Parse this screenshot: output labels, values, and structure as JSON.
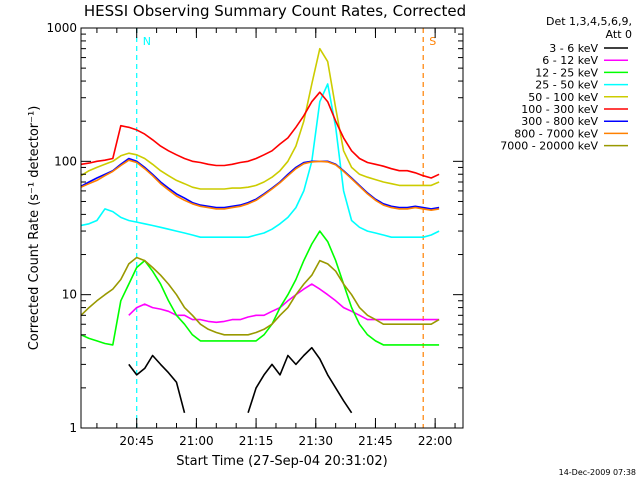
{
  "chart_data": {
    "type": "line",
    "title": "HESSI Observing Summary Count Rates, Corrected",
    "xlabel": "Start Time (27-Sep-04 20:31:02)",
    "ylabel": "Corrected Count Rate (s⁻¹ detector⁻¹)",
    "x_unit": "minutes since 20:31:02",
    "xlim": [
      0,
      96
    ],
    "ylim": [
      1,
      1000
    ],
    "y_scale": "log",
    "x_ticks": [
      {
        "x": 14,
        "label": "20:45"
      },
      {
        "x": 29,
        "label": "21:00"
      },
      {
        "x": 44,
        "label": "21:15"
      },
      {
        "x": 59,
        "label": "21:30"
      },
      {
        "x": 74,
        "label": "21:45"
      },
      {
        "x": 89,
        "label": "22:00"
      }
    ],
    "y_ticks": [
      {
        "y": 1,
        "label": "1"
      },
      {
        "y": 10,
        "label": "10"
      },
      {
        "y": 100,
        "label": "100"
      },
      {
        "y": 1000,
        "label": "1000"
      }
    ],
    "legend_header": [
      "Det 1,3,4,5,6,9,",
      "Att 0"
    ],
    "legend_position": "right",
    "series": [
      {
        "name": "3 - 6 keV",
        "color": "#000000",
        "x": [
          0,
          8,
          10,
          12,
          14,
          16,
          18,
          20,
          22,
          24,
          26,
          30,
          34,
          40,
          42,
          44,
          46,
          48,
          50,
          52,
          54,
          56,
          58,
          60,
          62,
          64,
          66,
          68,
          70,
          72,
          74,
          76
        ],
        "y": [
          null,
          null,
          null,
          3,
          2.5,
          2.8,
          3.5,
          3,
          2.6,
          2.2,
          1.3,
          null,
          null,
          null,
          1.3,
          2,
          2.5,
          3,
          2.5,
          3.5,
          3,
          3.5,
          4,
          3.3,
          2.5,
          2,
          1.6,
          1.3,
          null,
          null,
          null,
          null
        ]
      },
      {
        "name": "6 - 12 keV",
        "color": "#ff00ff",
        "x": [
          12,
          14,
          16,
          18,
          20,
          22,
          24,
          26,
          28,
          30,
          32,
          34,
          36,
          38,
          40,
          42,
          44,
          46,
          48,
          50,
          52,
          54,
          56,
          58,
          60,
          62,
          64,
          66,
          68,
          70,
          72,
          74,
          76,
          78,
          80,
          82,
          84,
          86,
          88,
          90,
          92
        ],
        "y": [
          7,
          8,
          8.5,
          8,
          7.8,
          7.5,
          7,
          7,
          6.5,
          6.5,
          6.3,
          6.2,
          6.3,
          6.5,
          6.5,
          6.8,
          7,
          7,
          7.5,
          8,
          9,
          10,
          11,
          12,
          11,
          10,
          9,
          8,
          7.5,
          7,
          6.5,
          6.5,
          6.5,
          6.5,
          6.5,
          6.5,
          6.5,
          6.5,
          6.5,
          6.5,
          null
        ]
      },
      {
        "name": "12 - 25 keV",
        "color": "#00ff00",
        "x": [
          0,
          2,
          4,
          6,
          8,
          10,
          12,
          14,
          16,
          18,
          20,
          22,
          24,
          26,
          28,
          30,
          32,
          34,
          36,
          38,
          40,
          42,
          44,
          46,
          48,
          50,
          52,
          54,
          56,
          58,
          60,
          62,
          64,
          66,
          68,
          70,
          72,
          74,
          76,
          78,
          80,
          82,
          84,
          86,
          88,
          90,
          92
        ],
        "y": [
          5,
          4.7,
          4.5,
          4.3,
          4.2,
          9,
          12,
          16,
          18,
          15,
          12,
          9,
          7,
          6,
          5,
          4.5,
          4.5,
          4.5,
          4.5,
          4.5,
          4.5,
          4.5,
          4.5,
          5,
          6,
          8,
          10,
          13,
          18,
          24,
          30,
          25,
          18,
          12,
          8,
          6,
          5,
          4.5,
          4.2,
          4.2,
          4.2,
          4.2,
          4.2,
          4.2,
          4.2,
          4.2,
          null
        ]
      },
      {
        "name": "25 - 50 keV",
        "color": "#00ffff",
        "x": [
          0,
          2,
          4,
          6,
          8,
          10,
          12,
          14,
          16,
          18,
          20,
          22,
          24,
          26,
          28,
          30,
          32,
          34,
          36,
          38,
          40,
          42,
          44,
          46,
          48,
          50,
          52,
          54,
          56,
          58,
          60,
          62,
          64,
          66,
          68,
          70,
          72,
          74,
          76,
          78,
          80,
          82,
          84,
          86,
          88,
          90,
          92
        ],
        "y": [
          33,
          34,
          36,
          44,
          42,
          38,
          36,
          35,
          34,
          33,
          32,
          31,
          30,
          29,
          28,
          27,
          27,
          27,
          27,
          27,
          27,
          27,
          28,
          29,
          31,
          34,
          38,
          45,
          60,
          100,
          280,
          380,
          180,
          60,
          36,
          32,
          30,
          29,
          28,
          27,
          27,
          27,
          27,
          27,
          28,
          30,
          null
        ]
      },
      {
        "name": "50 - 100 keV",
        "color": "#cccc00",
        "x": [
          0,
          2,
          4,
          6,
          8,
          10,
          12,
          14,
          16,
          18,
          20,
          22,
          24,
          26,
          28,
          30,
          32,
          34,
          36,
          38,
          40,
          42,
          44,
          46,
          48,
          50,
          52,
          54,
          56,
          58,
          60,
          62,
          64,
          66,
          68,
          70,
          72,
          74,
          76,
          78,
          80,
          82,
          84,
          86,
          88,
          90,
          92
        ],
        "y": [
          78,
          85,
          90,
          95,
          100,
          110,
          115,
          112,
          105,
          95,
          85,
          78,
          72,
          68,
          64,
          62,
          62,
          62,
          62,
          63,
          63,
          64,
          66,
          70,
          76,
          85,
          100,
          130,
          200,
          380,
          700,
          560,
          250,
          120,
          90,
          80,
          76,
          73,
          70,
          68,
          66,
          66,
          66,
          66,
          66,
          70,
          null
        ]
      },
      {
        "name": "100 - 300 keV",
        "color": "#ff0000",
        "x": [
          0,
          2,
          4,
          6,
          8,
          10,
          12,
          14,
          16,
          18,
          20,
          22,
          24,
          26,
          28,
          30,
          32,
          34,
          36,
          38,
          40,
          42,
          44,
          46,
          48,
          50,
          52,
          54,
          56,
          58,
          60,
          62,
          64,
          66,
          68,
          70,
          72,
          74,
          76,
          78,
          80,
          82,
          84,
          86,
          88,
          90,
          92
        ],
        "y": [
          95,
          97,
          100,
          102,
          105,
          185,
          180,
          172,
          160,
          145,
          130,
          120,
          112,
          105,
          100,
          98,
          95,
          93,
          93,
          95,
          98,
          100,
          105,
          112,
          120,
          135,
          150,
          180,
          220,
          280,
          330,
          280,
          200,
          150,
          120,
          105,
          98,
          95,
          92,
          88,
          85,
          85,
          82,
          78,
          75,
          80,
          null
        ]
      },
      {
        "name": "300 - 800 keV",
        "color": "#0000ff",
        "x": [
          0,
          2,
          4,
          6,
          8,
          10,
          12,
          14,
          16,
          18,
          20,
          22,
          24,
          26,
          28,
          30,
          32,
          34,
          36,
          38,
          40,
          42,
          44,
          46,
          48,
          50,
          52,
          54,
          56,
          58,
          60,
          62,
          64,
          66,
          68,
          70,
          72,
          74,
          76,
          78,
          80,
          82,
          84,
          86,
          88,
          90,
          92
        ],
        "y": [
          65,
          70,
          75,
          80,
          85,
          95,
          105,
          100,
          90,
          80,
          70,
          63,
          57,
          53,
          49,
          47,
          46,
          45,
          45,
          46,
          47,
          49,
          52,
          57,
          63,
          70,
          80,
          90,
          98,
          100,
          100,
          100,
          95,
          85,
          75,
          66,
          58,
          52,
          48,
          46,
          45,
          45,
          46,
          45,
          44,
          45,
          null
        ]
      },
      {
        "name": "800 - 7000 keV",
        "color": "#ff8000",
        "x": [
          0,
          2,
          4,
          6,
          8,
          10,
          12,
          14,
          16,
          18,
          20,
          22,
          24,
          26,
          28,
          30,
          32,
          34,
          36,
          38,
          40,
          42,
          44,
          46,
          48,
          50,
          52,
          54,
          56,
          58,
          60,
          62,
          64,
          66,
          68,
          70,
          72,
          74,
          76,
          78,
          80,
          82,
          84,
          86,
          88,
          90,
          92
        ],
        "y": [
          64,
          68,
          72,
          78,
          84,
          93,
          102,
          98,
          88,
          78,
          68,
          61,
          55,
          51,
          48,
          46,
          45,
          44,
          44,
          45,
          46,
          48,
          51,
          56,
          62,
          69,
          78,
          88,
          96,
          99,
          100,
          99,
          94,
          84,
          74,
          65,
          57,
          51,
          47,
          45,
          44,
          44,
          45,
          44,
          43,
          44,
          null
        ]
      },
      {
        "name": "7000 - 20000 keV",
        "color": "#999900",
        "x": [
          0,
          2,
          4,
          6,
          8,
          10,
          12,
          14,
          16,
          18,
          20,
          22,
          24,
          26,
          28,
          30,
          32,
          34,
          36,
          38,
          40,
          42,
          44,
          46,
          48,
          50,
          52,
          54,
          56,
          58,
          60,
          62,
          64,
          66,
          68,
          70,
          72,
          74,
          76,
          78,
          80,
          82,
          84,
          86,
          88,
          90,
          92
        ],
        "y": [
          7,
          8,
          9,
          10,
          11,
          13,
          17,
          19,
          18,
          16,
          14,
          12,
          10,
          8,
          7,
          6,
          5.5,
          5.2,
          5,
          5,
          5,
          5,
          5.2,
          5.5,
          6,
          7,
          8,
          10,
          12,
          14,
          18,
          17,
          15,
          12,
          10,
          8,
          7,
          6.5,
          6,
          6,
          6,
          6,
          6,
          6,
          6,
          6.5,
          null
        ]
      }
    ],
    "annotations": [
      {
        "label": "N",
        "x": 14,
        "color": "#00ffff"
      },
      {
        "label": "S",
        "x": 86,
        "color": "#ff8000"
      }
    ],
    "footer": "14-Dec-2009 07:38"
  }
}
